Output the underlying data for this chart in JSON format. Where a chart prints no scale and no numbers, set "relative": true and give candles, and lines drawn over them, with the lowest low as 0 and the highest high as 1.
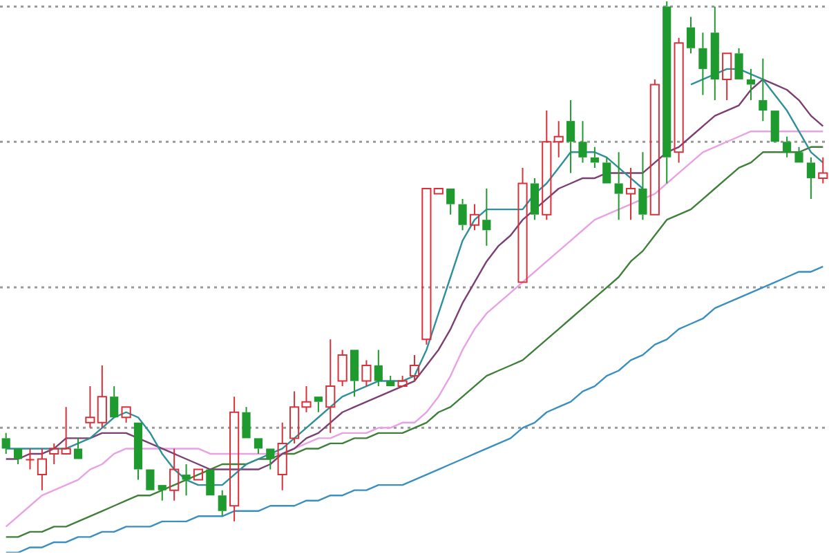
{
  "chart_data": {
    "type": "candlestick",
    "relative": true,
    "categories": [
      null,
      null,
      null,
      null,
      null,
      null,
      null,
      null,
      null,
      null,
      null,
      null,
      null,
      null,
      null,
      null,
      null,
      null,
      null,
      null,
      null,
      null,
      null,
      null,
      null,
      null,
      null,
      null,
      null,
      null,
      null,
      null,
      null,
      null,
      null,
      null,
      null,
      null,
      null,
      null,
      null,
      null,
      null,
      null,
      null,
      null,
      null,
      null,
      null,
      null,
      null,
      null,
      null,
      null,
      null,
      null,
      null,
      null,
      null,
      null,
      null,
      null,
      null,
      null,
      null,
      null,
      null,
      null,
      null
    ],
    "ohlc": [
      [
        0.16,
        0.17,
        0.13,
        0.14
      ],
      [
        0.14,
        0.14,
        0.11,
        0.12
      ],
      [
        0.12,
        0.14,
        0.1,
        0.12
      ],
      [
        0.09,
        0.14,
        0.06,
        0.12
      ],
      [
        0.13,
        0.15,
        0.11,
        0.14
      ],
      [
        0.13,
        0.22,
        0.13,
        0.14
      ],
      [
        0.14,
        0.16,
        0.12,
        0.12
      ],
      [
        0.19,
        0.26,
        0.18,
        0.2
      ],
      [
        0.19,
        0.3,
        0.18,
        0.24
      ],
      [
        0.24,
        0.26,
        0.2,
        0.2
      ],
      [
        0.2,
        0.22,
        0.19,
        0.22
      ],
      [
        0.19,
        0.19,
        0.08,
        0.1
      ],
      [
        0.1,
        0.1,
        0.06,
        0.06
      ],
      [
        0.07,
        0.07,
        0.04,
        0.06
      ],
      [
        0.06,
        0.14,
        0.04,
        0.1
      ],
      [
        0.09,
        0.11,
        0.05,
        0.08
      ],
      [
        0.08,
        0.1,
        0.08,
        0.1
      ],
      [
        0.1,
        0.1,
        0.05,
        0.05
      ],
      [
        0.05,
        0.06,
        0.01,
        0.02
      ],
      [
        0.03,
        0.24,
        0,
        0.21
      ],
      [
        0.21,
        0.22,
        0.16,
        0.16
      ],
      [
        0.16,
        0.16,
        0.13,
        0.14
      ],
      [
        0.14,
        0.14,
        0.1,
        0.12
      ],
      [
        0.09,
        0.19,
        0.06,
        0.15
      ],
      [
        0.16,
        0.25,
        0.15,
        0.22
      ],
      [
        0.22,
        0.26,
        0.21,
        0.23
      ],
      [
        0.24,
        0.24,
        0.21,
        0.23
      ],
      [
        0.22,
        0.35,
        0.17,
        0.26
      ],
      [
        0.27,
        0.33,
        0.26,
        0.32
      ],
      [
        0.33,
        0.33,
        0.24,
        0.27
      ],
      [
        0.27,
        0.31,
        0.26,
        0.3
      ],
      [
        0.3,
        0.33,
        0.26,
        0.27
      ],
      [
        0.27,
        0.28,
        0.26,
        0.26
      ],
      [
        0.26,
        0.28,
        0.26,
        0.27
      ],
      [
        0.28,
        0.32,
        0.27,
        0.3
      ],
      [
        0.35,
        0.64,
        0.34,
        0.64
      ],
      [
        0.63,
        0.64,
        0.63,
        0.64
      ],
      [
        0.64,
        0.64,
        0.59,
        0.61
      ],
      [
        0.61,
        0.62,
        0.56,
        0.57
      ],
      [
        0.57,
        0.61,
        0.56,
        0.59
      ],
      [
        0.58,
        0.64,
        0.53,
        0.56
      ],
      null,
      null,
      [
        0.46,
        0.68,
        0.46,
        0.65
      ],
      [
        0.65,
        0.66,
        0.58,
        0.59
      ],
      [
        0.59,
        0.79,
        0.58,
        0.73
      ],
      [
        0.73,
        0.77,
        0.7,
        0.74
      ],
      [
        0.77,
        0.81,
        0.67,
        0.73
      ],
      [
        0.73,
        0.77,
        0.69,
        0.7
      ],
      [
        0.7,
        0.72,
        0.68,
        0.69
      ],
      [
        0.69,
        0.7,
        0.65,
        0.65
      ],
      [
        0.65,
        0.71,
        0.58,
        0.63
      ],
      [
        0.63,
        0.68,
        0.58,
        0.64
      ],
      [
        0.64,
        0.71,
        0.58,
        0.59
      ],
      [
        0.59,
        0.85,
        0.59,
        0.84
      ],
      [
        0.99,
        1,
        0.65,
        0.7
      ],
      [
        0.71,
        0.93,
        0.69,
        0.92
      ],
      [
        0.95,
        0.97,
        0.9,
        0.91
      ],
      [
        0.91,
        0.94,
        0.82,
        0.87
      ],
      [
        0.94,
        0.99,
        0.81,
        0.85
      ],
      [
        0.85,
        0.9,
        0.81,
        0.9
      ],
      [
        0.9,
        0.91,
        0.85,
        0.85
      ],
      [
        0.85,
        0.87,
        0.81,
        0.84
      ],
      [
        0.81,
        0.89,
        0.77,
        0.79
      ],
      [
        0.79,
        0.79,
        0.73,
        0.73
      ],
      [
        0.73,
        0.74,
        0.7,
        0.71
      ],
      [
        0.71,
        0.72,
        0.69,
        0.69
      ],
      [
        0.69,
        0.7,
        0.62,
        0.66
      ],
      [
        0.66,
        0.7,
        0.65,
        0.67
      ]
    ],
    "colors": [
      "#1f9a2e",
      "#1f9a2e",
      "#d9303a",
      "#d9303a",
      "#d9303a",
      "#d9303a",
      "#1f9a2e",
      "#d9303a",
      "#d9303a",
      "#1f9a2e",
      "#d9303a",
      "#1f9a2e",
      "#1f9a2e",
      "#1f9a2e",
      "#d9303a",
      "#1f9a2e",
      "#d9303a",
      "#1f9a2e",
      "#1f9a2e",
      "#d9303a",
      "#1f9a2e",
      "#1f9a2e",
      "#1f9a2e",
      "#d9303a",
      "#d9303a",
      "#d9303a",
      "#1f9a2e",
      "#d9303a",
      "#d9303a",
      "#1f9a2e",
      "#d9303a",
      "#1f9a2e",
      "#1f9a2e",
      "#d9303a",
      "#d9303a",
      "#d9303a",
      "#d9303a",
      "#1f9a2e",
      "#1f9a2e",
      "#d9303a",
      "#1f9a2e",
      null,
      null,
      "#d9303a",
      "#1f9a2e",
      "#d9303a",
      "#d9303a",
      "#1f9a2e",
      "#1f9a2e",
      "#1f9a2e",
      "#1f9a2e",
      "#1f9a2e",
      "#d9303a",
      "#1f9a2e",
      "#d9303a",
      "#1f9a2e",
      "#d9303a",
      "#1f9a2e",
      "#1f9a2e",
      "#1f9a2e",
      "#d9303a",
      "#1f9a2e",
      "#1f9a2e",
      "#1f9a2e",
      "#1f9a2e",
      "#1f9a2e",
      "#1f9a2e",
      "#1f9a2e",
      "#d9303a"
    ],
    "series": [
      {
        "type": "line",
        "color": "#2f8f9a",
        "values": [
          0.14,
          0.14,
          0.14,
          0.14,
          0.14,
          0.14,
          0.15,
          0.16,
          0.18,
          0.2,
          0.21,
          0.2,
          0.17,
          0.13,
          0.1,
          0.08,
          0.07,
          0.07,
          0.07,
          0.09,
          0.11,
          0.12,
          0.13,
          0.14,
          0.16,
          0.18,
          0.2,
          0.22,
          0.24,
          0.25,
          0.26,
          0.27,
          0.27,
          0.27,
          0.28,
          0.33,
          0.4,
          0.47,
          0.54,
          0.58,
          0.6,
          0.6,
          0.6,
          0.6,
          0.63,
          0.65,
          0.68,
          0.71,
          0.71,
          0.71,
          0.7,
          0.68,
          0.66,
          0.64,
          null,
          null,
          null,
          0.84,
          0.85,
          0.86,
          0.87,
          0.87,
          0.86,
          0.85,
          0.82,
          0.79,
          0.75,
          0.71,
          0.69
        ]
      },
      {
        "type": "line",
        "color": "#7b3f73",
        "values": [
          0.12,
          0.12,
          0.13,
          0.13,
          0.14,
          0.16,
          0.16,
          0.16,
          0.17,
          0.17,
          0.17,
          0.16,
          0.15,
          0.14,
          0.13,
          0.12,
          0.11,
          0.1,
          0.1,
          0.1,
          0.1,
          0.1,
          0.11,
          0.13,
          0.14,
          0.16,
          0.17,
          0.19,
          0.21,
          0.22,
          0.23,
          0.24,
          0.25,
          0.26,
          0.27,
          0.3,
          0.33,
          0.37,
          0.42,
          0.46,
          0.5,
          0.53,
          0.55,
          0.58,
          0.6,
          0.62,
          0.64,
          0.65,
          0.66,
          0.66,
          0.67,
          0.67,
          0.67,
          0.67,
          0.69,
          0.71,
          0.72,
          0.74,
          0.76,
          0.78,
          0.79,
          0.8,
          0.83,
          0.85,
          0.84,
          0.83,
          0.81,
          0.78,
          0.76
        ]
      },
      {
        "type": "line",
        "color": "#e8a2e4",
        "values": [
          -0.01,
          0.01,
          0.03,
          0.05,
          0.06,
          0.07,
          0.08,
          0.1,
          0.11,
          0.13,
          0.14,
          0.14,
          0.14,
          0.14,
          0.14,
          0.14,
          0.14,
          0.13,
          0.13,
          0.13,
          0.13,
          0.13,
          0.13,
          0.13,
          0.14,
          0.15,
          0.16,
          0.16,
          0.17,
          0.17,
          0.17,
          0.18,
          0.18,
          0.19,
          0.19,
          0.21,
          0.24,
          0.28,
          0.33,
          0.37,
          0.4,
          0.42,
          0.44,
          0.46,
          0.48,
          0.5,
          0.52,
          0.54,
          0.56,
          0.58,
          0.59,
          0.6,
          0.61,
          0.62,
          0.63,
          0.65,
          0.67,
          0.69,
          0.71,
          0.72,
          0.73,
          0.74,
          0.75,
          0.75,
          0.75,
          0.75,
          0.75,
          0.75,
          0.75
        ]
      },
      {
        "type": "line",
        "color": "#3f7f3a",
        "values": [
          -0.03,
          -0.03,
          -0.02,
          -0.02,
          -0.01,
          -0.01,
          0,
          0.01,
          0.02,
          0.03,
          0.04,
          0.05,
          0.05,
          0.06,
          0.07,
          0.08,
          0.09,
          0.1,
          0.11,
          0.11,
          0.11,
          0.12,
          0.12,
          0.13,
          0.13,
          0.14,
          0.14,
          0.15,
          0.15,
          0.16,
          0.16,
          0.17,
          0.17,
          0.17,
          0.18,
          0.19,
          0.21,
          0.22,
          0.24,
          0.26,
          0.28,
          0.29,
          0.3,
          0.31,
          0.33,
          0.35,
          0.37,
          0.39,
          0.41,
          0.43,
          0.45,
          0.47,
          0.5,
          0.52,
          0.55,
          0.58,
          0.59,
          0.6,
          0.62,
          0.64,
          0.66,
          0.68,
          0.69,
          0.71,
          0.71,
          0.71,
          0.71,
          0.72,
          0.72
        ]
      },
      {
        "type": "line",
        "color": "#3a8fc0",
        "values": [
          -0.06,
          -0.06,
          -0.05,
          -0.05,
          -0.04,
          -0.04,
          -0.03,
          -0.03,
          -0.02,
          -0.02,
          -0.01,
          -0.01,
          -0.01,
          0,
          0,
          0,
          0.01,
          0.01,
          0.01,
          0.02,
          0.02,
          0.02,
          0.03,
          0.03,
          0.03,
          0.04,
          0.04,
          0.05,
          0.05,
          0.06,
          0.06,
          0.07,
          0.07,
          0.07,
          0.08,
          0.09,
          0.1,
          0.11,
          0.12,
          0.13,
          0.14,
          0.15,
          0.16,
          0.18,
          0.19,
          0.21,
          0.22,
          0.23,
          0.25,
          0.26,
          0.28,
          0.29,
          0.31,
          0.32,
          0.34,
          0.35,
          0.37,
          0.38,
          0.39,
          0.41,
          0.42,
          0.43,
          0.44,
          0.45,
          0.46,
          0.47,
          0.48,
          0.48,
          0.49
        ]
      }
    ],
    "ref_lines": [
      {
        "axis": "y",
        "value": 0.99,
        "color": "#9a9a9a",
        "line_style": "dotted"
      },
      {
        "axis": "y",
        "value": 0.73,
        "color": "#9a9a9a",
        "line_style": "dotted"
      },
      {
        "axis": "y",
        "value": 0.45,
        "color": "#9a9a9a",
        "line_style": "dotted"
      },
      {
        "axis": "y",
        "value": 0.18,
        "color": "#9a9a9a",
        "line_style": "dotted"
      }
    ]
  }
}
